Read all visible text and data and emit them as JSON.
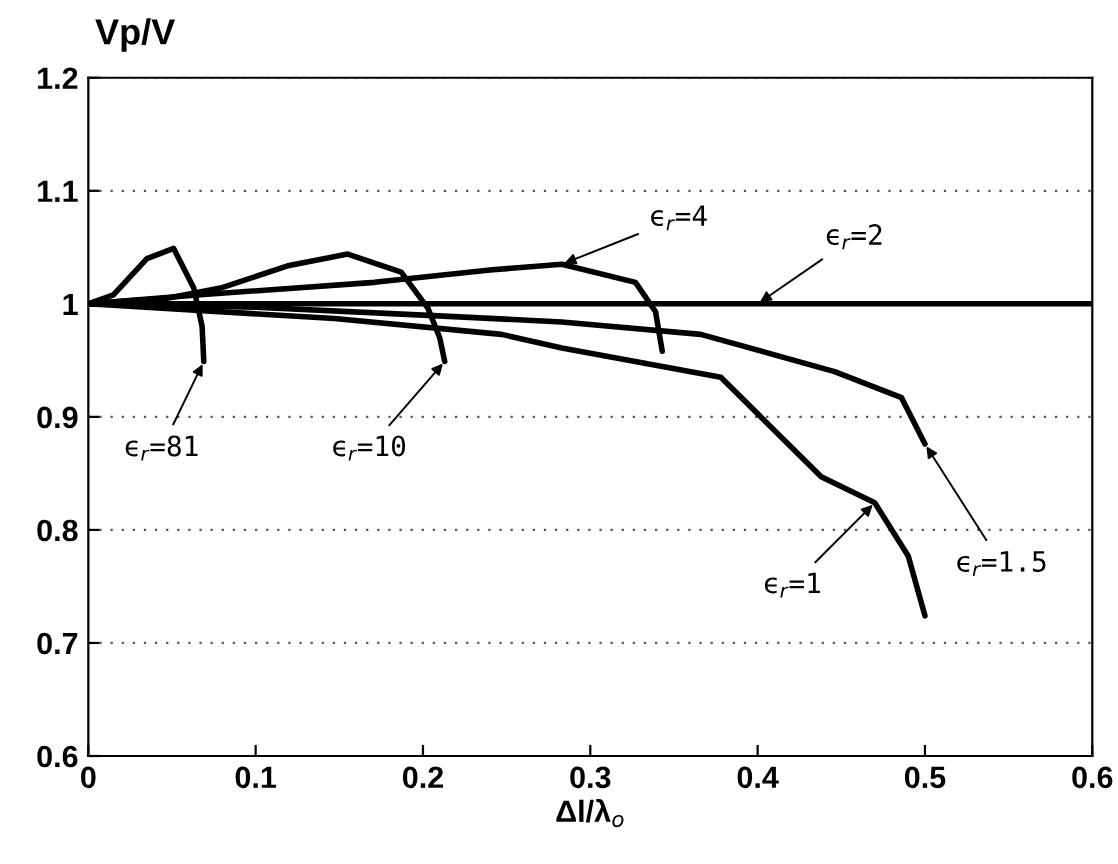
{
  "chart_data": {
    "type": "line",
    "ylabel": "Vp/V",
    "xlabel": "Δl/λ$_{o}$",
    "xlim": [
      0,
      0.6
    ],
    "xticks": [
      0,
      0.1,
      0.2,
      0.3,
      0.4,
      0.5,
      0.6
    ],
    "ylim": [
      0.6,
      1.2
    ],
    "yticks": [
      0.6,
      0.7,
      0.8,
      0.9,
      1,
      1.1,
      1.2
    ],
    "grid": "y",
    "line_style": "solid",
    "series": [
      {
        "color": "#000000",
        "x": [
          0,
          0.015,
          0.035,
          0.051,
          0.063,
          0.068,
          0.069
        ],
        "values": [
          1,
          1.008,
          1.04,
          1.049,
          1.014,
          0.98,
          0.949
        ]
      },
      {
        "color": "#000000",
        "x": [
          0,
          0.047,
          0.079,
          0.12,
          0.155,
          0.187,
          0.203,
          0.21,
          0.213
        ],
        "values": [
          1,
          1.005,
          1.014,
          1.034,
          1.044,
          1.028,
          0.996,
          0.97,
          0.949
        ]
      },
      {
        "color": "#000000",
        "x": [
          0,
          0.067,
          0.171,
          0.24,
          0.283,
          0.327,
          0.339,
          0.343
        ],
        "values": [
          1,
          1.008,
          1.019,
          1.03,
          1.035,
          1.019,
          0.993,
          0.958
        ]
      },
      {
        "color": "#000000",
        "x": [
          0,
          0.6
        ],
        "values": [
          1,
          1
        ]
      },
      {
        "color": "#000000",
        "x": [
          0,
          0.1,
          0.2,
          0.283,
          0.366,
          0.446,
          0.486,
          0.5
        ],
        "values": [
          1,
          0.997,
          0.99,
          0.984,
          0.973,
          0.94,
          0.917,
          0.876
        ]
      },
      {
        "color": "#000000",
        "x": [
          0,
          0.147,
          0.247,
          0.283,
          0.378,
          0.406,
          0.438,
          0.47,
          0.49,
          0.5
        ],
        "values": [
          1,
          0.987,
          0.973,
          0.961,
          0.935,
          0.894,
          0.847,
          0.824,
          0.777,
          0.724
        ]
      }
    ],
    "annotations": [
      {
        "text": "ϵ$_{r}$=81",
        "x": 0.069,
        "y": 0.949
      },
      {
        "text": "ϵ$_{r}$=10",
        "x": 0.213,
        "y": 0.949
      },
      {
        "text": "ϵ$_{r}$=4",
        "x": 0.283,
        "y": 1.035
      },
      {
        "text": "ϵ$_{r}$=2",
        "x": 0.4,
        "y": 1
      },
      {
        "text": "ϵ$_{r}$=1.5",
        "x": 0.5,
        "y": 0.876
      },
      {
        "text": "ϵ$_{r}$=1",
        "x": 0.47,
        "y": 0.824
      }
    ]
  }
}
